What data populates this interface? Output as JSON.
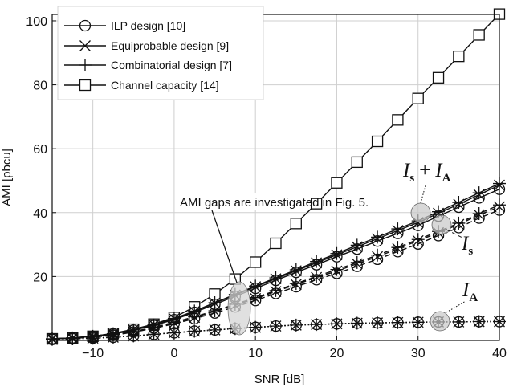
{
  "chart_data": {
    "type": "line",
    "xlabel": "SNR [dB]",
    "ylabel": "AMI [pbcu]",
    "xlim": [
      -15,
      40
    ],
    "ylim": [
      0,
      102
    ],
    "xticks": [
      -10,
      0,
      10,
      20,
      30,
      40
    ],
    "yticks": [
      20,
      40,
      60,
      80,
      100
    ],
    "grid": true,
    "legend_position": "top-left",
    "x": [
      -15,
      -12.5,
      -10,
      -7.5,
      -5,
      -2.5,
      0,
      2.5,
      5,
      7.5,
      10,
      12.5,
      15,
      17.5,
      20,
      22.5,
      25,
      27.5,
      30,
      32.5,
      35,
      37.5,
      40
    ],
    "series": [
      {
        "name": "Channel capacity [14]",
        "marker": "square",
        "line": "solid",
        "x": [
          -15,
          -12.5,
          -10,
          -7.5,
          -5,
          -2.5,
          0,
          2.5,
          5,
          7.5,
          10,
          12.5,
          15,
          17.5,
          20,
          22.5,
          25,
          27.5,
          30,
          32.5,
          35,
          37.5,
          40
        ],
        "values": [
          0.5,
          0.8,
          1.3,
          2.2,
          3.5,
          5.1,
          7.2,
          10.5,
          14.5,
          19.2,
          24.5,
          30.4,
          36.6,
          42.8,
          49.3,
          55.8,
          62.3,
          69.0,
          75.7,
          82.2,
          88.9,
          95.6,
          102.1
        ]
      },
      {
        "name": "ILP design [10] — I_s + I_A",
        "marker": "circle",
        "line": "solid",
        "values": [
          0.5,
          0.8,
          1.2,
          2.0,
          3.2,
          4.7,
          6.5,
          8.8,
          11.3,
          13.8,
          16.3,
          18.8,
          21.3,
          23.7,
          26.2,
          28.6,
          31.1,
          33.5,
          36.0,
          38.9,
          41.7,
          44.6,
          47.3
        ]
      },
      {
        "name": "Equiprobable design [9] — I_s + I_A",
        "marker": "x",
        "line": "solid",
        "values": [
          0.5,
          0.8,
          1.3,
          2.1,
          3.3,
          4.9,
          6.8,
          9.1,
          11.7,
          14.2,
          16.8,
          19.3,
          21.8,
          24.3,
          26.8,
          29.3,
          31.8,
          34.4,
          36.9,
          39.8,
          42.6,
          45.6,
          48.6
        ]
      },
      {
        "name": "Combinatorial design [7] — I_s + I_A",
        "marker": "plus",
        "line": "solid",
        "values": [
          0.5,
          0.8,
          1.3,
          2.1,
          3.3,
          4.9,
          6.9,
          9.2,
          11.8,
          14.4,
          17.0,
          19.6,
          22.1,
          24.7,
          27.2,
          29.8,
          32.3,
          34.9,
          37.4,
          40.3,
          43.2,
          46.2,
          49.1
        ]
      },
      {
        "name": "ILP design [10] — I_s",
        "marker": "circle",
        "line": "dashed",
        "values": [
          0.5,
          0.7,
          1.0,
          1.6,
          2.6,
          3.8,
          5.2,
          6.8,
          8.6,
          10.5,
          12.5,
          14.7,
          16.8,
          19.0,
          21.0,
          23.2,
          25.4,
          27.8,
          30.2,
          32.8,
          35.3,
          38.3,
          40.8
        ]
      },
      {
        "name": "Equiprobable design [9] — I_s",
        "marker": "x",
        "line": "dashed",
        "values": [
          0.5,
          0.7,
          1.1,
          1.7,
          2.7,
          4.0,
          5.5,
          7.2,
          9.1,
          11.0,
          13.1,
          15.3,
          17.5,
          19.7,
          21.7,
          24.0,
          26.2,
          28.7,
          31.2,
          33.7,
          36.3,
          39.3,
          41.8
        ]
      },
      {
        "name": "Combinatorial design [7] — I_s",
        "marker": "plus",
        "line": "dashed",
        "values": [
          0.5,
          0.7,
          1.1,
          1.8,
          2.8,
          4.1,
          5.7,
          7.4,
          9.3,
          11.3,
          13.4,
          15.6,
          17.8,
          20.0,
          22.2,
          24.4,
          26.7,
          29.1,
          31.6,
          34.1,
          36.7,
          39.7,
          42.4
        ]
      },
      {
        "name": "ILP design [10] — I_A",
        "marker": "circle",
        "line": "dotted",
        "values": [
          0.3,
          0.5,
          0.7,
          1.0,
          1.4,
          1.9,
          2.4,
          2.9,
          3.3,
          3.7,
          4.1,
          4.5,
          4.8,
          5.0,
          5.2,
          5.4,
          5.5,
          5.6,
          5.7,
          5.8,
          5.8,
          5.9,
          5.9
        ]
      },
      {
        "name": "Equiprobable design [9] — I_A",
        "marker": "x",
        "line": "dotted",
        "values": [
          0.3,
          0.5,
          0.7,
          1.0,
          1.4,
          1.9,
          2.4,
          2.9,
          3.3,
          3.7,
          4.1,
          4.5,
          4.8,
          5.0,
          5.2,
          5.4,
          5.5,
          5.6,
          5.7,
          5.8,
          5.8,
          5.9,
          5.9
        ]
      },
      {
        "name": "Combinatorial design [7] — I_A",
        "marker": "plus",
        "line": "dotted",
        "values": [
          0.3,
          0.5,
          0.7,
          1.0,
          1.4,
          1.9,
          2.4,
          2.9,
          3.3,
          3.7,
          4.1,
          4.5,
          4.8,
          5.0,
          5.2,
          5.4,
          5.5,
          5.6,
          5.7,
          5.8,
          5.8,
          5.9,
          5.9
        ]
      }
    ],
    "legend": [
      {
        "label": "ILP design [10]",
        "marker": "circle"
      },
      {
        "label": "Equiprobable design [9]",
        "marker": "x"
      },
      {
        "label": "Combinatorial design [7]",
        "marker": "plus"
      },
      {
        "label": "Channel capacity [14]",
        "marker": "square"
      }
    ],
    "annotations": {
      "gap_note": "AMI gaps are investigated in Fig. 5.",
      "label_sum_I": "I",
      "label_sum_s": "s",
      "label_sum_plus": "+",
      "label_sum_I2": "I",
      "label_sum_A": "A",
      "label_s_I": "I",
      "label_s_s": "s",
      "label_A_I": "I",
      "label_A_A": "A"
    }
  }
}
